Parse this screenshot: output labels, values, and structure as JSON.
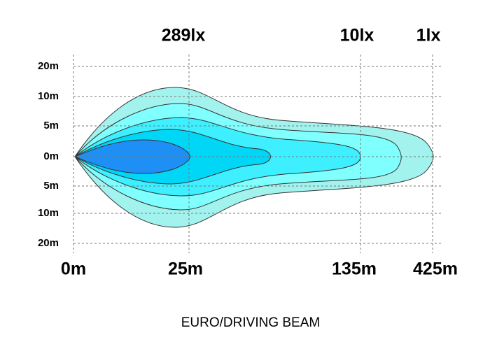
{
  "top_labels": [
    "289lx",
    "10lx",
    "1lx"
  ],
  "y_labels": [
    "20m",
    "10m",
    "5m",
    "0m",
    "5m",
    "10m",
    "20m"
  ],
  "x_labels": [
    "0m",
    "25m",
    "135m",
    "425m"
  ],
  "title": "EURO/DRIVING BEAM"
}
